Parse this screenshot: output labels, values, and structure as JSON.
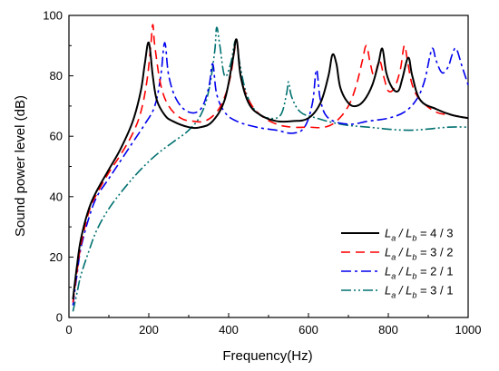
{
  "chart_data": {
    "type": "line",
    "title": "",
    "xlabel": "Frequency(Hz)",
    "ylabel": "Sound power level (dB)",
    "xlim": [
      0,
      1000
    ],
    "ylim": [
      0,
      100
    ],
    "xticks": [
      0,
      200,
      400,
      600,
      800,
      1000
    ],
    "yticks": [
      0,
      20,
      40,
      60,
      80,
      100
    ],
    "grid": false,
    "legend_position": "lower-right",
    "series": [
      {
        "name": "La / Lb = 4 / 3",
        "legend_main": "L",
        "legend_a": "a",
        "legend_mid": " / L",
        "legend_b": "b",
        "legend_ratio": " = 4 / 3",
        "color": "#000000",
        "dash": "solid",
        "points": [
          [
            10,
            6
          ],
          [
            20,
            17
          ],
          [
            30,
            26
          ],
          [
            50,
            36
          ],
          [
            70,
            42
          ],
          [
            100,
            49
          ],
          [
            130,
            56
          ],
          [
            160,
            65
          ],
          [
            180,
            75
          ],
          [
            190,
            84
          ],
          [
            200,
            91
          ],
          [
            210,
            80
          ],
          [
            220,
            72
          ],
          [
            240,
            67
          ],
          [
            260,
            65
          ],
          [
            300,
            63
          ],
          [
            330,
            63
          ],
          [
            360,
            65
          ],
          [
            390,
            72
          ],
          [
            410,
            85
          ],
          [
            420,
            92
          ],
          [
            430,
            80
          ],
          [
            450,
            71
          ],
          [
            480,
            67
          ],
          [
            520,
            65
          ],
          [
            560,
            65
          ],
          [
            600,
            66
          ],
          [
            630,
            71
          ],
          [
            650,
            80
          ],
          [
            660,
            87
          ],
          [
            670,
            84
          ],
          [
            680,
            76
          ],
          [
            700,
            71
          ],
          [
            720,
            70
          ],
          [
            740,
            72
          ],
          [
            760,
            77
          ],
          [
            775,
            84
          ],
          [
            785,
            89
          ],
          [
            795,
            81
          ],
          [
            810,
            76
          ],
          [
            825,
            75
          ],
          [
            835,
            79
          ],
          [
            850,
            86
          ],
          [
            860,
            80
          ],
          [
            880,
            72
          ],
          [
            920,
            69
          ],
          [
            960,
            67
          ],
          [
            1000,
            66
          ]
        ]
      },
      {
        "name": "La / Lb = 3 / 2",
        "legend_main": "L",
        "legend_a": "a",
        "legend_mid": " / L",
        "legend_b": "b",
        "legend_ratio": " = 3 / 2",
        "color": "#ff0000",
        "dash": "dashed",
        "points": [
          [
            10,
            5
          ],
          [
            20,
            15
          ],
          [
            30,
            24
          ],
          [
            50,
            35
          ],
          [
            70,
            41
          ],
          [
            100,
            48
          ],
          [
            130,
            54
          ],
          [
            160,
            61
          ],
          [
            180,
            68
          ],
          [
            195,
            78
          ],
          [
            205,
            90
          ],
          [
            210,
            97
          ],
          [
            215,
            90
          ],
          [
            230,
            77
          ],
          [
            250,
            70
          ],
          [
            280,
            66
          ],
          [
            310,
            65
          ],
          [
            340,
            65
          ],
          [
            370,
            68
          ],
          [
            390,
            73
          ],
          [
            405,
            80
          ],
          [
            420,
            91
          ],
          [
            430,
            80
          ],
          [
            450,
            72
          ],
          [
            480,
            67
          ],
          [
            520,
            64
          ],
          [
            560,
            63
          ],
          [
            600,
            63
          ],
          [
            640,
            63
          ],
          [
            670,
            65
          ],
          [
            700,
            70
          ],
          [
            720,
            77
          ],
          [
            735,
            85
          ],
          [
            745,
            90
          ],
          [
            755,
            84
          ],
          [
            765,
            80
          ],
          [
            778,
            85
          ],
          [
            790,
            79
          ],
          [
            800,
            75
          ],
          [
            815,
            76
          ],
          [
            830,
            82
          ],
          [
            840,
            90
          ],
          [
            848,
            85
          ],
          [
            860,
            77
          ],
          [
            880,
            72
          ],
          [
            920,
            68
          ],
          [
            960,
            67
          ],
          [
            1000,
            66
          ]
        ]
      },
      {
        "name": "La / Lb = 2 / 1",
        "legend_main": "L",
        "legend_a": "a",
        "legend_mid": " / L",
        "legend_b": "b",
        "legend_ratio": " = 2 / 1",
        "color": "#0000ee",
        "dash": "dashdot",
        "points": [
          [
            10,
            4
          ],
          [
            20,
            14
          ],
          [
            30,
            23
          ],
          [
            50,
            33
          ],
          [
            70,
            40
          ],
          [
            100,
            46
          ],
          [
            130,
            52
          ],
          [
            160,
            58
          ],
          [
            190,
            64
          ],
          [
            215,
            70
          ],
          [
            230,
            80
          ],
          [
            240,
            91
          ],
          [
            250,
            80
          ],
          [
            270,
            72
          ],
          [
            300,
            68
          ],
          [
            330,
            69
          ],
          [
            350,
            76
          ],
          [
            360,
            84
          ],
          [
            370,
            74
          ],
          [
            390,
            68
          ],
          [
            420,
            65
          ],
          [
            470,
            63
          ],
          [
            520,
            62
          ],
          [
            560,
            61
          ],
          [
            590,
            63
          ],
          [
            610,
            71
          ],
          [
            620,
            82
          ],
          [
            630,
            72
          ],
          [
            650,
            66
          ],
          [
            700,
            64
          ],
          [
            750,
            65
          ],
          [
            800,
            66
          ],
          [
            840,
            68
          ],
          [
            870,
            72
          ],
          [
            890,
            78
          ],
          [
            905,
            87
          ],
          [
            912,
            89
          ],
          [
            920,
            85
          ],
          [
            935,
            81
          ],
          [
            950,
            83
          ],
          [
            960,
            87
          ],
          [
            970,
            89
          ],
          [
            985,
            83
          ],
          [
            1000,
            77
          ]
        ]
      },
      {
        "name": "La / Lb = 3 / 1",
        "legend_main": "L",
        "legend_a": "a",
        "legend_mid": " / L",
        "legend_b": "b",
        "legend_ratio": " = 3 / 1",
        "color": "#007070",
        "dash": "dashdotdot",
        "points": [
          [
            10,
            2
          ],
          [
            20,
            8
          ],
          [
            30,
            14
          ],
          [
            50,
            22
          ],
          [
            70,
            29
          ],
          [
            100,
            36
          ],
          [
            140,
            43
          ],
          [
            180,
            49
          ],
          [
            220,
            54
          ],
          [
            260,
            58
          ],
          [
            300,
            62
          ],
          [
            330,
            67
          ],
          [
            350,
            75
          ],
          [
            365,
            88
          ],
          [
            370,
            96
          ],
          [
            378,
            90
          ],
          [
            390,
            80
          ],
          [
            405,
            84
          ],
          [
            418,
            92
          ],
          [
            428,
            84
          ],
          [
            445,
            74
          ],
          [
            470,
            68
          ],
          [
            500,
            66
          ],
          [
            530,
            67
          ],
          [
            545,
            74
          ],
          [
            550,
            78
          ],
          [
            558,
            73
          ],
          [
            580,
            68
          ],
          [
            620,
            66
          ],
          [
            680,
            64
          ],
          [
            750,
            63
          ],
          [
            850,
            62
          ],
          [
            950,
            63
          ],
          [
            1000,
            63
          ]
        ]
      }
    ]
  }
}
